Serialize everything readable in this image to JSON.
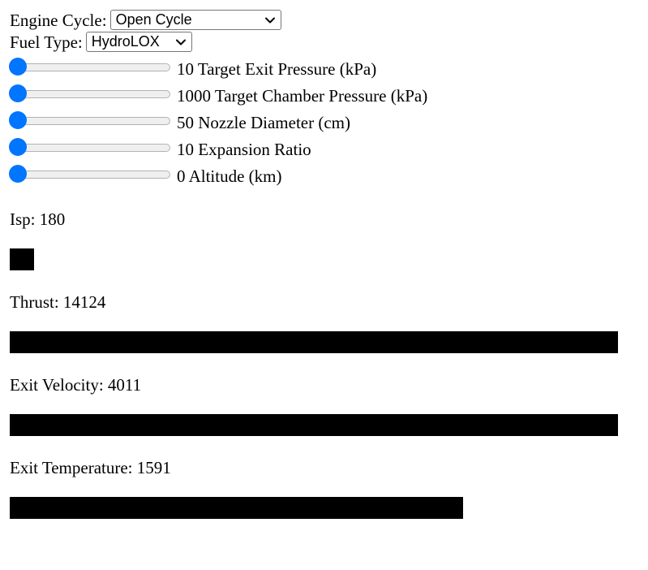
{
  "engine_cycle": {
    "label": "Engine Cycle:",
    "selected": "Open Cycle"
  },
  "fuel_type": {
    "label": "Fuel Type:",
    "selected": "HydroLOX"
  },
  "sliders": [
    {
      "id": "target-exit-pressure",
      "label": "10 Target Exit Pressure (kPa)",
      "position": 0
    },
    {
      "id": "target-chamber-pressure",
      "label": "1000 Target Chamber Pressure (kPa)",
      "position": 0
    },
    {
      "id": "nozzle-diameter",
      "label": "50 Nozzle Diameter (cm)",
      "position": 0
    },
    {
      "id": "expansion-ratio",
      "label": "10 Expansion Ratio",
      "position": 0
    },
    {
      "id": "altitude",
      "label": "0 Altitude (km)",
      "position": 0
    }
  ],
  "results": [
    {
      "id": "isp",
      "label": "Isp: 180",
      "fill": 0.04
    },
    {
      "id": "thrust",
      "label": "Thrust: 14124",
      "fill": 1.0
    },
    {
      "id": "exit-velocity",
      "label": "Exit Velocity: 4011",
      "fill": 1.0
    },
    {
      "id": "exit-temperature",
      "label": "Exit Temperature: 1591",
      "fill": 0.745
    }
  ],
  "colors": {
    "slider_thumb": "#0075ff",
    "bar": "#000000"
  }
}
